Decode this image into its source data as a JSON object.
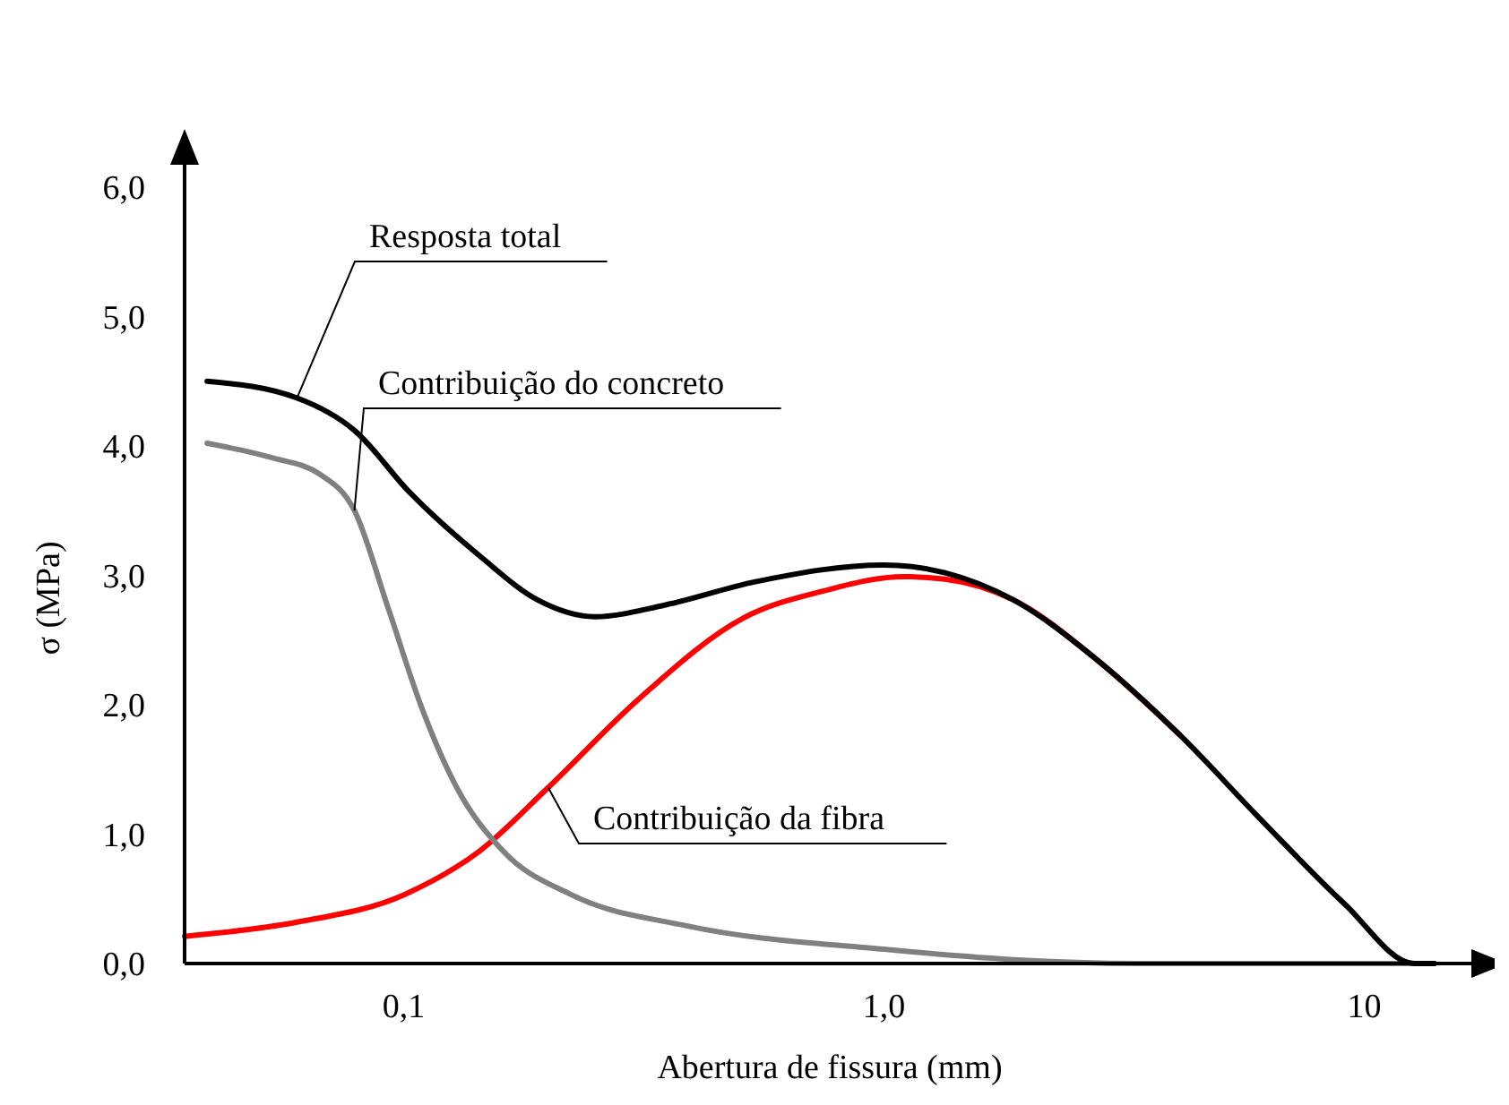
{
  "chart_data": {
    "type": "line",
    "xlabel": "Abertura de fissura (mm)",
    "ylabel": "σ (MPa)",
    "log": "x",
    "xlim": [
      0.035,
      17
    ],
    "xticks": [
      {
        "value": 0.1,
        "label": "0,1"
      },
      {
        "value": 1,
        "label": "1,0"
      },
      10
    ],
    "ylim": [
      0,
      6.2
    ],
    "yticks": [
      {
        "value": 0,
        "label": "0,0"
      },
      {
        "value": 1,
        "label": "1,0"
      },
      {
        "value": 2,
        "label": "2,0"
      },
      {
        "value": 3,
        "label": "3,0"
      },
      {
        "value": 4,
        "label": "4,0"
      },
      {
        "value": 5,
        "label": "5,0"
      },
      {
        "value": 6,
        "label": "6,0"
      }
    ],
    "grid": false,
    "marker": "none",
    "line_style": "solid",
    "series": [
      {
        "name": "Resposta total",
        "color": "#000000",
        "x": [
          0.039,
          0.06,
          0.079,
          0.103,
          0.144,
          0.19,
          0.25,
          0.35,
          0.54,
          1.0,
          1.34,
          1.86,
          2.77,
          4.12,
          6.1,
          9.1,
          12.7,
          14.0
        ],
        "values": [
          4.5,
          4.37,
          4.12,
          3.64,
          3.15,
          2.81,
          2.68,
          2.77,
          2.95,
          3.08,
          3.02,
          2.81,
          2.35,
          1.77,
          1.11,
          0.46,
          0.0,
          0.0
        ]
      },
      {
        "name": "Contribuição do concreto",
        "color": "#808080",
        "x": [
          0.039,
          0.053,
          0.067,
          0.079,
          0.093,
          0.109,
          0.129,
          0.161,
          0.224,
          0.39,
          1.0,
          1.86,
          3.6,
          14.0
        ],
        "values": [
          4.02,
          3.91,
          3.78,
          3.5,
          2.74,
          1.98,
          1.36,
          0.87,
          0.53,
          0.29,
          0.11,
          0.03,
          0.0,
          0.0
        ]
      },
      {
        "name": "Contribuição da fibra",
        "color": "#ff0000",
        "x": [
          0.035,
          0.06,
          0.1,
          0.144,
          0.2,
          0.31,
          0.51,
          0.75,
          1.1,
          1.34,
          1.86,
          2.77,
          4.12
        ],
        "values": [
          0.21,
          0.32,
          0.53,
          0.87,
          1.36,
          2.05,
          2.67,
          2.88,
          2.99,
          2.97,
          2.81,
          2.35,
          1.77
        ]
      }
    ]
  }
}
